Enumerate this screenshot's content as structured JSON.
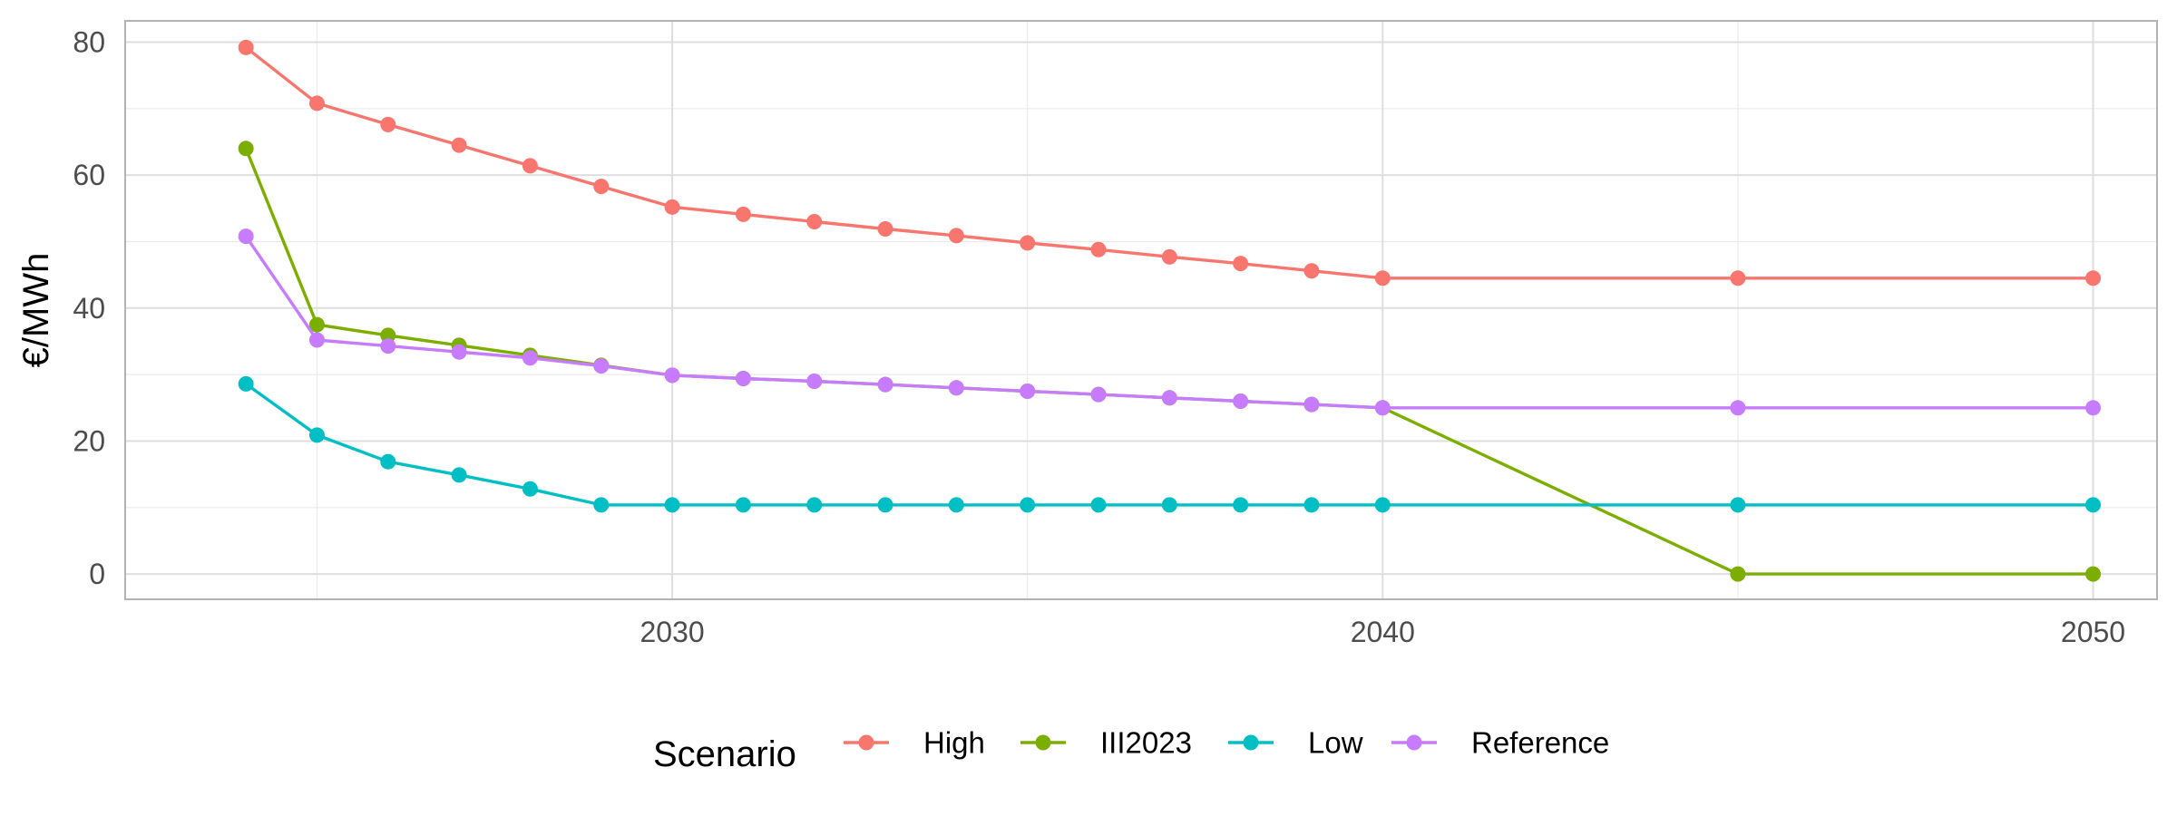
{
  "chart_data": {
    "type": "line",
    "title": "",
    "xlabel": "",
    "ylabel": "€/MWh",
    "xlim": [
      2022.3,
      2050.9
    ],
    "ylim": [
      -3.8,
      83.2
    ],
    "x_ticks": [
      2030,
      2040,
      2050
    ],
    "x_tick_labels": [
      "2030",
      "2040",
      "2050"
    ],
    "y_ticks": [
      0,
      20,
      40,
      60,
      80
    ],
    "y_tick_labels": [
      "0",
      "20",
      "40",
      "60",
      "80"
    ],
    "grid": true,
    "legend": {
      "title": "Scenario",
      "position": "bottom"
    },
    "series": [
      {
        "name": "High",
        "color": "#F8766D",
        "x": [
          2024,
          2025,
          2026,
          2027,
          2028,
          2029,
          2030,
          2031,
          2032,
          2033,
          2034,
          2035,
          2036,
          2037,
          2038,
          2039,
          2040,
          2045,
          2050
        ],
        "y": [
          79.2,
          70.8,
          67.6,
          64.5,
          61.4,
          58.3,
          55.2,
          54.1,
          53.0,
          51.9,
          50.9,
          49.8,
          48.8,
          47.7,
          46.7,
          45.6,
          44.5,
          44.5,
          44.5
        ]
      },
      {
        "name": "III2023",
        "color": "#7CAE00",
        "x": [
          2024,
          2025,
          2026,
          2027,
          2028,
          2029,
          2030,
          2031,
          2032,
          2033,
          2034,
          2035,
          2036,
          2037,
          2038,
          2039,
          2040,
          2045,
          2050
        ],
        "y": [
          64.0,
          37.5,
          35.9,
          34.4,
          32.9,
          31.4,
          29.9,
          29.4,
          29.0,
          28.5,
          28.0,
          27.5,
          27.0,
          26.5,
          26.0,
          25.5,
          25.0,
          0.0,
          0.0
        ]
      },
      {
        "name": "Low",
        "color": "#00BFC4",
        "x": [
          2024,
          2025,
          2026,
          2027,
          2028,
          2029,
          2030,
          2031,
          2032,
          2033,
          2034,
          2035,
          2036,
          2037,
          2038,
          2039,
          2040,
          2045,
          2050
        ],
        "y": [
          28.6,
          20.9,
          16.9,
          14.9,
          12.8,
          10.4,
          10.4,
          10.4,
          10.4,
          10.4,
          10.4,
          10.4,
          10.4,
          10.4,
          10.4,
          10.4,
          10.4,
          10.4,
          10.4
        ]
      },
      {
        "name": "Reference",
        "color": "#C77CFF",
        "x": [
          2024,
          2025,
          2026,
          2027,
          2028,
          2029,
          2030,
          2031,
          2032,
          2033,
          2034,
          2035,
          2036,
          2037,
          2038,
          2039,
          2040,
          2045,
          2050
        ],
        "y": [
          50.8,
          35.2,
          34.3,
          33.4,
          32.5,
          31.3,
          29.9,
          29.4,
          29.0,
          28.5,
          28.0,
          27.5,
          27.0,
          26.5,
          26.0,
          25.5,
          25.0,
          25.0,
          25.0
        ]
      }
    ]
  }
}
